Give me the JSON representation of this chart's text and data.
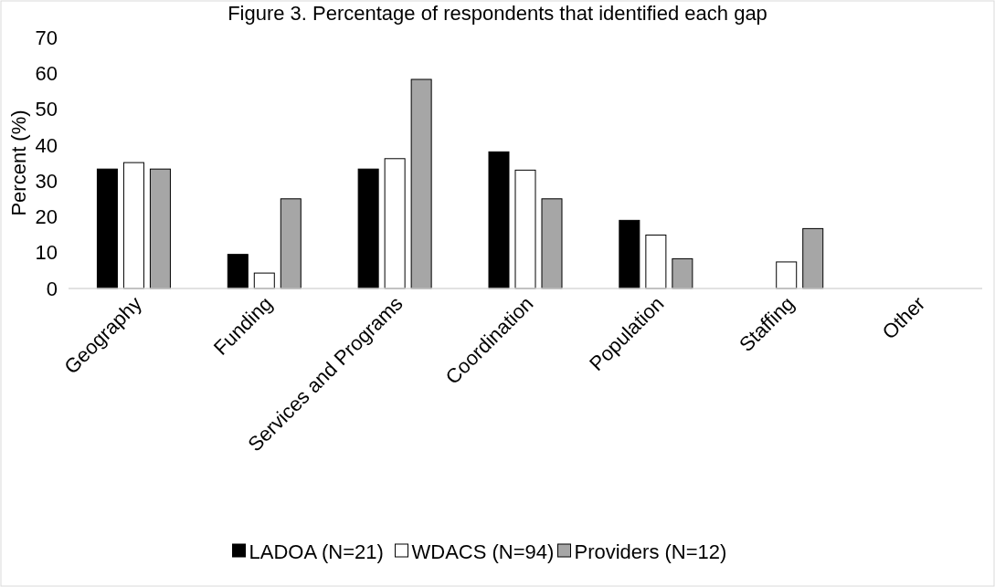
{
  "chart_data": {
    "type": "bar",
    "title": "Figure 3. Percentage of respondents that identified each gap",
    "ylabel": "Percent (%)",
    "categories": [
      "Geography",
      "Funding",
      "Services and Programs",
      "Coordination",
      "Population",
      "Staffing",
      "Other"
    ],
    "series": [
      {
        "name": "LADOA (N=21)",
        "color": "#000000",
        "values": [
          33.3,
          9.5,
          33.3,
          38.1,
          19,
          0,
          0
        ]
      },
      {
        "name": "WDACS (N=94)",
        "color": "#ffffff",
        "values": [
          35.1,
          4.3,
          36.2,
          33,
          14.9,
          7.4,
          0
        ]
      },
      {
        "name": "Providers (N=12)",
        "color": "#a6a6a6",
        "values": [
          33.3,
          25,
          58.3,
          25,
          8.3,
          16.7,
          0
        ]
      }
    ],
    "ylim": [
      0,
      70
    ],
    "yticks": [
      0,
      10,
      20,
      30,
      40,
      50,
      60,
      70
    ],
    "grid": false,
    "legend": "bottom"
  }
}
